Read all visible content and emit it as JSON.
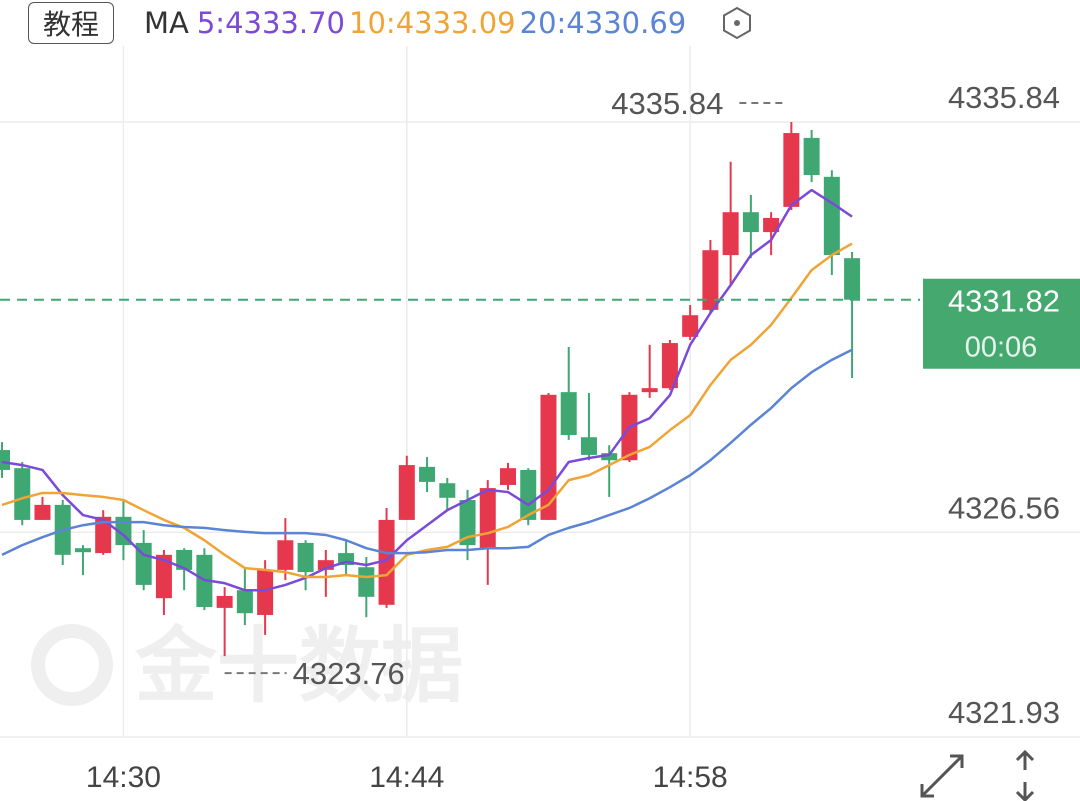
{
  "toolbar": {
    "button": "教程",
    "legend_title": "MA"
  },
  "chart_data": {
    "type": "candlestick",
    "x": [
      null,
      null,
      null,
      null,
      null,
      null,
      "14:30",
      null,
      null,
      null,
      null,
      null,
      null,
      null,
      null,
      null,
      null,
      null,
      null,
      null,
      "14:44",
      null,
      null,
      null,
      null,
      null,
      null,
      null,
      null,
      null,
      null,
      null,
      null,
      null,
      "14:58",
      null,
      null,
      null,
      null,
      null,
      null,
      null,
      null
    ],
    "open": [
      4328.42,
      4328.01,
      4326.84,
      4327.18,
      4326.2,
      4326.09,
      4326.91,
      4326.32,
      4325.07,
      4326.16,
      4326.05,
      4324.85,
      4325.25,
      4324.69,
      4325.71,
      4326.32,
      4325.71,
      4326.09,
      4325.77,
      4324.92,
      4326.84,
      4328.04,
      4327.67,
      4327.29,
      4326.2,
      4327.63,
      4327.97,
      4326.84,
      4329.73,
      4328.71,
      4328.35,
      4328.19,
      4329.73,
      4329.82,
      4330.98,
      4331.59,
      4332.83,
      4333.8,
      4333.35,
      4333.92,
      4335.48,
      4334.6,
      4332.76
    ],
    "high": [
      4328.6,
      4328.15,
      4327.36,
      4327.29,
      4326.27,
      4327.06,
      4327.29,
      4326.61,
      4326.16,
      4326.2,
      4326.2,
      4325.32,
      4325.77,
      4325.93,
      4326.88,
      4326.38,
      4326.16,
      4326.38,
      4326.0,
      4327.11,
      4328.29,
      4328.26,
      4327.79,
      4327.52,
      4327.74,
      4328.13,
      4328.01,
      4329.71,
      4330.75,
      4329.71,
      4328.53,
      4329.73,
      4330.8,
      4330.91,
      4331.7,
      4333.17,
      4334.94,
      4334.19,
      4333.8,
      4335.84,
      4335.66,
      4334.75,
      4332.9
    ],
    "low": [
      4327.79,
      4326.72,
      4326.84,
      4325.82,
      4325.59,
      4326.05,
      4325.93,
      4325.25,
      4324.69,
      4325.25,
      4324.8,
      4323.76,
      4324.46,
      4324.24,
      4325.48,
      4325.25,
      4325.1,
      4325.59,
      4324.64,
      4324.85,
      4326.84,
      4327.47,
      4327.06,
      4325.93,
      4325.37,
      4327.52,
      4326.72,
      4326.84,
      4328.65,
      4328.19,
      4327.36,
      4328.15,
      4329.6,
      4329.78,
      4330.91,
      4331.5,
      4332.15,
      4332.76,
      4332.83,
      4333.85,
      4334.48,
      4332.38,
      4330.05
    ],
    "close": [
      4327.97,
      4326.84,
      4327.18,
      4326.05,
      4326.11,
      4326.91,
      4326.27,
      4325.37,
      4326.05,
      4325.71,
      4324.87,
      4325.12,
      4324.73,
      4325.71,
      4326.38,
      4325.66,
      4325.93,
      4325.82,
      4325.1,
      4326.84,
      4328.08,
      4327.7,
      4327.34,
      4326.27,
      4327.56,
      4328.01,
      4326.84,
      4329.67,
      4328.76,
      4328.31,
      4328.19,
      4329.67,
      4329.82,
      4330.84,
      4331.47,
      4332.94,
      4333.8,
      4333.35,
      4333.67,
      4335.59,
      4334.64,
      4332.83,
      4331.82
    ],
    "up_color": "#e5384d",
    "down_color": "#3fa872",
    "ma": [
      {
        "name": "5:4333.70",
        "color": "#7b4ad8",
        "values": [
          4328.15,
          4328.08,
          4327.97,
          4327.4,
          4326.95,
          4326.84,
          4326.5,
          4326.05,
          4325.93,
          4325.75,
          4325.48,
          4325.41,
          4325.25,
          4325.25,
          4325.37,
          4325.53,
          4325.75,
          4325.89,
          4325.82,
          4325.93,
          4326.38,
          4326.72,
          4327.06,
          4327.29,
          4327.52,
          4327.47,
          4327.18,
          4327.52,
          4328.15,
          4328.24,
          4328.31,
          4328.94,
          4329.14,
          4329.66,
          4330.8,
          4331.52,
          4332.15,
          4332.83,
          4333.17,
          4333.96,
          4334.3,
          4334.01,
          4333.7
        ]
      },
      {
        "name": "10:4333.09",
        "color": "#f0a436",
        "values": [
          4327.18,
          4327.33,
          4327.45,
          4327.45,
          4327.4,
          4327.36,
          4327.29,
          4327.06,
          4326.84,
          4326.66,
          4326.38,
          4326.05,
          4325.75,
          4325.71,
          4325.66,
          4325.55,
          4325.55,
          4325.59,
          4325.55,
          4325.59,
          4326.05,
          4326.16,
          4326.23,
          4326.45,
          4326.54,
          4326.68,
          4326.95,
          4327.18,
          4327.74,
          4327.85,
          4328.08,
          4328.31,
          4328.49,
          4328.87,
          4329.21,
          4329.89,
          4330.46,
          4330.8,
          4331.25,
          4331.86,
          4332.49,
          4332.83,
          4333.09
        ]
      },
      {
        "name": "20:4330.69",
        "color": "#5b84d6",
        "values": [
          4326.05,
          4326.27,
          4326.45,
          4326.61,
          4326.72,
          4326.79,
          4326.79,
          4326.79,
          4326.72,
          4326.68,
          4326.66,
          4326.61,
          4326.57,
          4326.54,
          4326.54,
          4326.54,
          4326.5,
          4326.38,
          4326.2,
          4326.09,
          4326.09,
          4326.11,
          4326.16,
          4326.16,
          4326.2,
          4326.2,
          4326.23,
          4326.5,
          4326.66,
          4326.79,
          4326.95,
          4327.11,
          4327.33,
          4327.58,
          4327.85,
          4328.19,
          4328.58,
          4328.99,
          4329.37,
          4329.82,
          4330.18,
          4330.46,
          4330.69
        ]
      }
    ],
    "ylim": [
      4321.93,
      4335.84
    ],
    "yticks": [
      4321.93,
      4326.56,
      4335.84
    ],
    "grid": true,
    "countdown": "00:06",
    "watermark": "金十数据"
  }
}
